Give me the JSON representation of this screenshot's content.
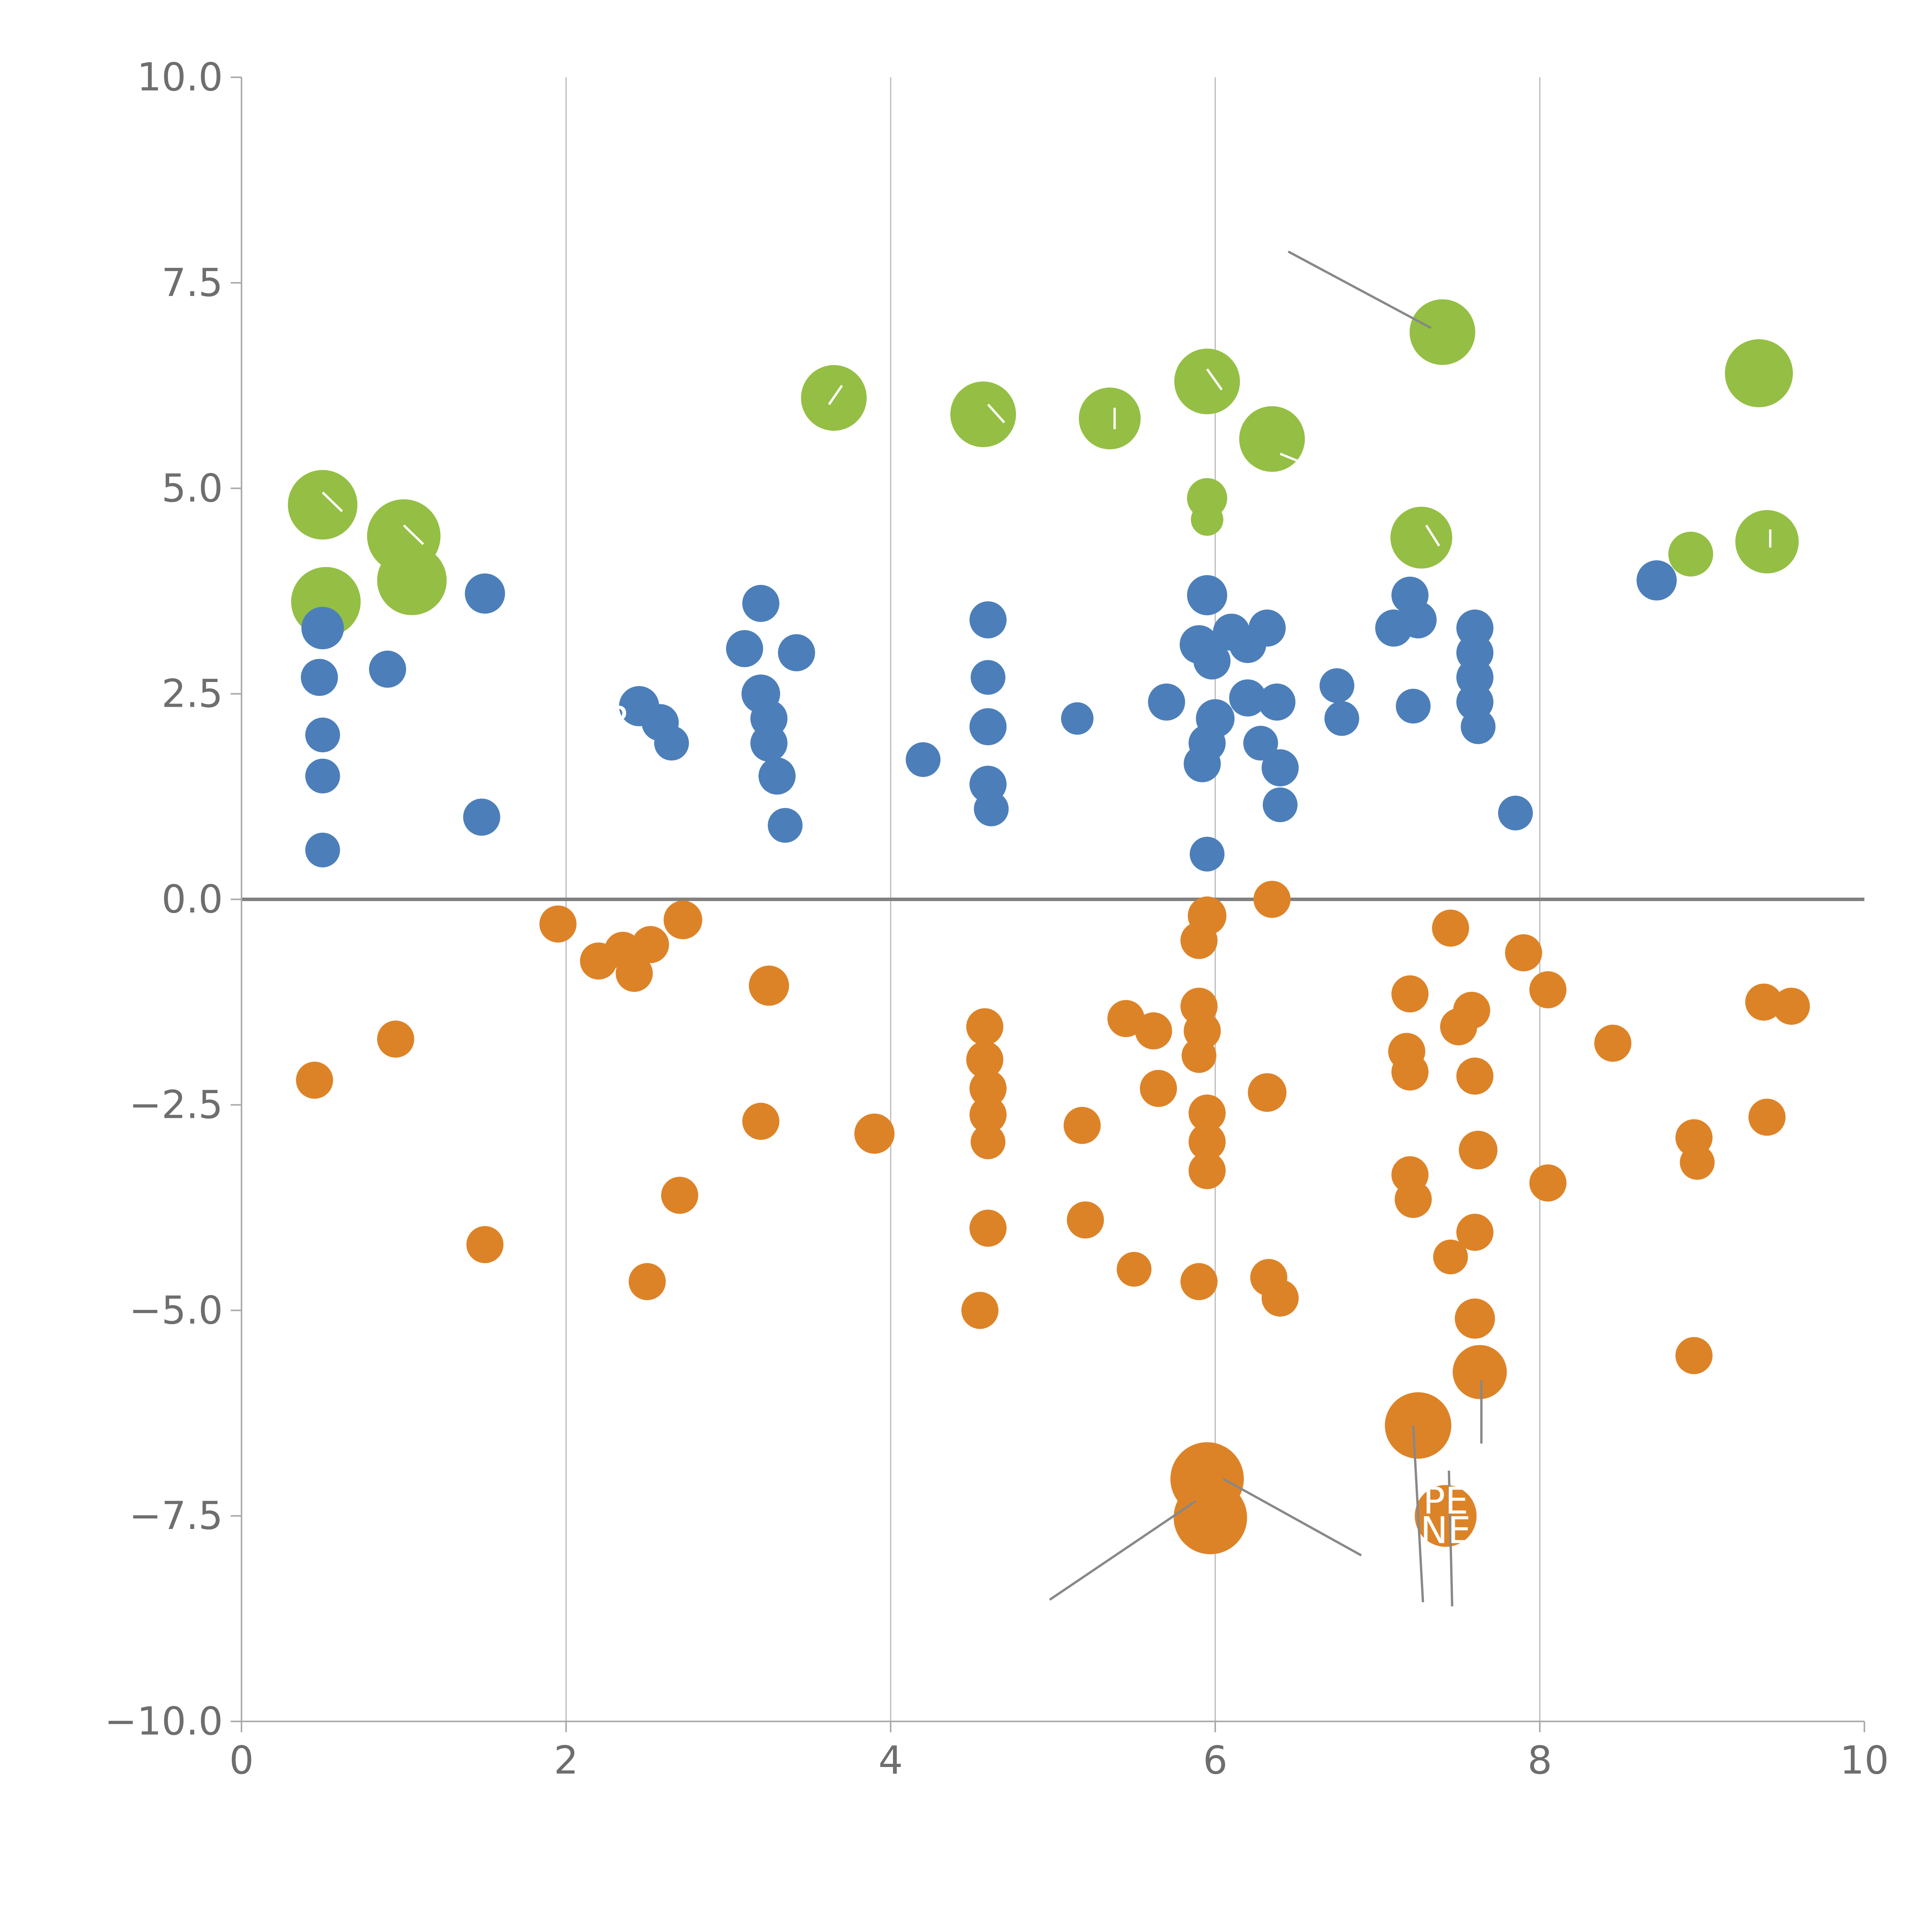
{
  "chart_data": {
    "type": "scatter",
    "title": "",
    "xlabel": "",
    "ylabel": "",
    "xlim": [
      0,
      10
    ],
    "ylim": [
      -10,
      10
    ],
    "x_ticks": [
      0,
      2,
      4,
      6,
      8,
      10
    ],
    "y_ticks": [
      10.0,
      7.5,
      5.0,
      2.5,
      0.0,
      -2.5,
      -5.0,
      -7.5,
      -10.0
    ],
    "grid_x": [
      2,
      4,
      6,
      8
    ],
    "zero_line_y": 0,
    "colors": {
      "green": "#94bf44",
      "blue": "#4c7fba",
      "orange": "#dd8327",
      "grid": "#b8b8b8",
      "zero_line": "#808080",
      "spine": "#aaaaaa",
      "tick_label": "#6e6e6e",
      "leader_line": "#888888",
      "annotation_text": "#ffffff"
    },
    "series": [
      {
        "name": "green",
        "points": [
          [
            0.5,
            4.8,
            90
          ],
          [
            0.52,
            3.62,
            90
          ],
          [
            1.0,
            4.42,
            95
          ],
          [
            1.05,
            3.88,
            90
          ],
          [
            3.65,
            6.1,
            85
          ],
          [
            4.57,
            5.9,
            85
          ],
          [
            5.35,
            5.85,
            80
          ],
          [
            5.95,
            6.3,
            85
          ],
          [
            5.95,
            4.88,
            52
          ],
          [
            5.95,
            4.62,
            42
          ],
          [
            6.35,
            5.6,
            85
          ],
          [
            7.27,
            4.4,
            80
          ],
          [
            7.4,
            6.9,
            85
          ],
          [
            8.93,
            4.2,
            58
          ],
          [
            9.35,
            6.4,
            88
          ],
          [
            9.4,
            4.35,
            82
          ]
        ]
      },
      {
        "name": "blue",
        "points": [
          [
            0.5,
            3.3,
            55
          ],
          [
            0.48,
            2.7,
            48
          ],
          [
            0.5,
            2.0,
            45
          ],
          [
            0.5,
            1.5,
            45
          ],
          [
            0.5,
            0.6,
            45
          ],
          [
            0.9,
            2.8,
            48
          ],
          [
            1.5,
            3.72,
            52
          ],
          [
            1.48,
            1.0,
            48
          ],
          [
            2.45,
            2.35,
            52
          ],
          [
            2.58,
            2.15,
            48
          ],
          [
            2.65,
            1.9,
            45
          ],
          [
            3.1,
            3.05,
            48
          ],
          [
            3.2,
            3.6,
            48
          ],
          [
            3.2,
            2.5,
            50
          ],
          [
            3.25,
            2.2,
            48
          ],
          [
            3.25,
            1.9,
            48
          ],
          [
            3.3,
            1.5,
            48
          ],
          [
            3.42,
            3.0,
            48
          ],
          [
            3.35,
            0.9,
            45
          ],
          [
            4.2,
            1.7,
            45
          ],
          [
            4.6,
            3.4,
            48
          ],
          [
            4.6,
            2.7,
            45
          ],
          [
            4.6,
            2.1,
            48
          ],
          [
            4.6,
            1.4,
            48
          ],
          [
            4.62,
            1.1,
            45
          ],
          [
            5.15,
            2.2,
            42
          ],
          [
            5.7,
            2.4,
            48
          ],
          [
            5.95,
            3.7,
            52
          ],
          [
            5.9,
            3.1,
            50
          ],
          [
            5.98,
            2.9,
            48
          ],
          [
            6.0,
            2.2,
            50
          ],
          [
            5.95,
            1.9,
            48
          ],
          [
            5.92,
            1.65,
            48
          ],
          [
            5.95,
            0.55,
            45
          ],
          [
            6.1,
            3.25,
            48
          ],
          [
            6.2,
            3.1,
            48
          ],
          [
            6.2,
            2.45,
            48
          ],
          [
            6.28,
            1.9,
            45
          ],
          [
            6.32,
            3.3,
            48
          ],
          [
            6.38,
            2.4,
            48
          ],
          [
            6.4,
            1.6,
            48
          ],
          [
            6.4,
            1.15,
            45
          ],
          [
            6.75,
            2.6,
            45
          ],
          [
            6.78,
            2.2,
            45
          ],
          [
            7.1,
            3.3,
            48
          ],
          [
            7.2,
            3.7,
            48
          ],
          [
            7.25,
            3.4,
            48
          ],
          [
            7.22,
            2.35,
            45
          ],
          [
            7.6,
            3.3,
            48
          ],
          [
            7.6,
            3.0,
            48
          ],
          [
            7.6,
            2.7,
            48
          ],
          [
            7.6,
            2.4,
            48
          ],
          [
            7.62,
            2.1,
            45
          ],
          [
            7.85,
            1.05,
            45
          ],
          [
            8.72,
            3.88,
            52
          ]
        ]
      },
      {
        "name": "orange",
        "points": [
          [
            0.45,
            -2.2,
            48
          ],
          [
            0.95,
            -1.7,
            48
          ],
          [
            1.5,
            -4.2,
            48
          ],
          [
            1.95,
            -0.3,
            48
          ],
          [
            2.2,
            -0.75,
            48
          ],
          [
            2.35,
            -0.62,
            48
          ],
          [
            2.42,
            -0.9,
            48
          ],
          [
            2.52,
            -0.55,
            48
          ],
          [
            2.5,
            -4.65,
            48
          ],
          [
            2.72,
            -0.25,
            50
          ],
          [
            2.7,
            -3.6,
            48
          ],
          [
            3.25,
            -1.05,
            52
          ],
          [
            3.2,
            -2.7,
            48
          ],
          [
            3.9,
            -2.85,
            52
          ],
          [
            4.58,
            -1.55,
            48
          ],
          [
            4.58,
            -1.95,
            48
          ],
          [
            4.6,
            -2.3,
            48
          ],
          [
            4.6,
            -2.62,
            48
          ],
          [
            4.6,
            -2.95,
            45
          ],
          [
            4.6,
            -4.0,
            48
          ],
          [
            4.55,
            -5.0,
            48
          ],
          [
            5.18,
            -2.75,
            48
          ],
          [
            5.2,
            -3.9,
            48
          ],
          [
            5.45,
            -1.45,
            48
          ],
          [
            5.62,
            -1.6,
            48
          ],
          [
            5.65,
            -2.3,
            48
          ],
          [
            5.5,
            -4.5,
            45
          ],
          [
            5.9,
            -1.3,
            48
          ],
          [
            5.92,
            -1.6,
            48
          ],
          [
            5.9,
            -1.9,
            45
          ],
          [
            5.95,
            -0.2,
            50
          ],
          [
            5.9,
            -0.5,
            48
          ],
          [
            5.95,
            -2.6,
            48
          ],
          [
            5.95,
            -2.95,
            48
          ],
          [
            5.95,
            -3.3,
            48
          ],
          [
            5.9,
            -4.65,
            48
          ],
          [
            5.95,
            -7.05,
            95
          ],
          [
            5.97,
            -7.52,
            95
          ],
          [
            6.35,
            0.0,
            48
          ],
          [
            6.32,
            -2.35,
            50
          ],
          [
            6.33,
            -4.6,
            48
          ],
          [
            6.4,
            -4.85,
            48
          ],
          [
            7.2,
            -1.15,
            48
          ],
          [
            7.18,
            -1.85,
            48
          ],
          [
            7.2,
            -2.1,
            48
          ],
          [
            7.2,
            -3.35,
            48
          ],
          [
            7.22,
            -3.65,
            48
          ],
          [
            7.25,
            -6.4,
            86
          ],
          [
            7.42,
            -7.5,
            80
          ],
          [
            7.45,
            -0.35,
            48
          ],
          [
            7.5,
            -1.55,
            48
          ],
          [
            7.58,
            -1.35,
            48
          ],
          [
            7.6,
            -2.15,
            48
          ],
          [
            7.62,
            -3.05,
            50
          ],
          [
            7.6,
            -4.05,
            48
          ],
          [
            7.45,
            -4.35,
            45
          ],
          [
            7.6,
            -5.1,
            52
          ],
          [
            7.63,
            -5.75,
            70
          ],
          [
            7.9,
            -0.65,
            48
          ],
          [
            8.05,
            -1.1,
            48
          ],
          [
            8.05,
            -3.45,
            48
          ],
          [
            8.45,
            -1.75,
            48
          ],
          [
            8.95,
            -2.9,
            48
          ],
          [
            8.97,
            -3.2,
            45
          ],
          [
            8.95,
            -5.55,
            48
          ],
          [
            9.38,
            -1.25,
            48
          ],
          [
            9.55,
            -1.3,
            48
          ],
          [
            9.4,
            -2.65,
            48
          ]
        ]
      }
    ],
    "annotations": {
      "leader_lines": [
        [
          6.45,
          7.88,
          7.33,
          6.95
        ],
        [
          4.98,
          -8.52,
          5.88,
          -7.32
        ],
        [
          6.05,
          -7.05,
          6.9,
          -7.98
        ],
        [
          7.22,
          -6.4,
          7.28,
          -8.55
        ],
        [
          7.44,
          -6.95,
          7.46,
          -8.6
        ],
        [
          7.64,
          -5.85,
          7.64,
          -6.62
        ]
      ],
      "white_stubs": [
        [
          0.5,
          4.95,
          0.62,
          4.72
        ],
        [
          1.0,
          4.55,
          1.12,
          4.32
        ],
        [
          3.7,
          6.25,
          3.62,
          6.02
        ],
        [
          4.6,
          6.02,
          4.7,
          5.8
        ],
        [
          5.38,
          5.98,
          5.38,
          5.72
        ],
        [
          5.95,
          6.45,
          6.04,
          6.2
        ],
        [
          6.4,
          5.42,
          6.55,
          5.3
        ],
        [
          7.3,
          4.55,
          7.38,
          4.3
        ],
        [
          9.42,
          4.5,
          9.42,
          4.28
        ]
      ],
      "labels": [
        {
          "text": "R",
          "x": 2.32,
          "y": 2.18
        },
        {
          "text": "PE",
          "x": 7.42,
          "y": -7.32
        },
        {
          "text": "NE",
          "x": 7.42,
          "y": -7.68
        }
      ]
    }
  }
}
